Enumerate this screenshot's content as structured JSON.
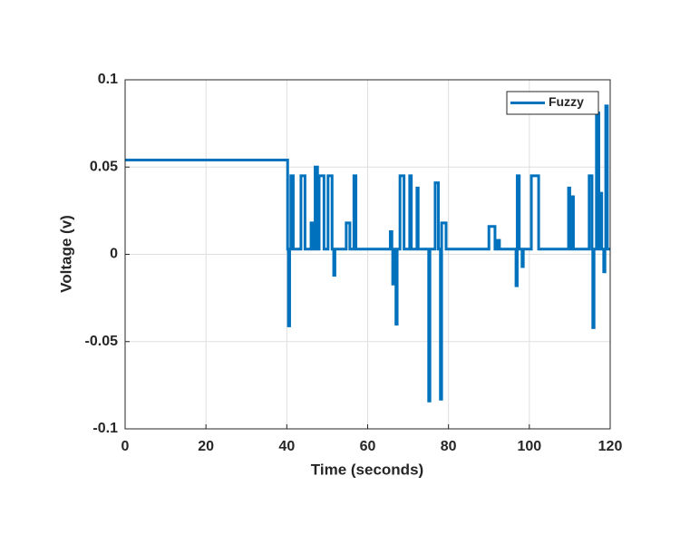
{
  "chart_data": {
    "type": "line",
    "xlabel": "Time (seconds)",
    "ylabel": "Voltage (v)",
    "xlim": [
      0,
      120
    ],
    "xticks": [
      0,
      20,
      40,
      60,
      80,
      100,
      120
    ],
    "ylim": [
      -0.1,
      0.1
    ],
    "yticks": [
      -0.1,
      -0.05,
      0,
      0.05,
      0.1
    ],
    "grid": true,
    "legend": "upper right",
    "series": [
      {
        "name": "Fuzzy",
        "color": "#0072bd",
        "x": [
          0,
          40.2,
          40.2,
          40.4,
          40.4,
          40.7,
          40.7,
          41,
          41,
          41.6,
          41.6,
          43.5,
          43.5,
          44.5,
          44.5,
          46,
          46,
          46.4,
          46.4,
          47,
          47,
          47.6,
          47.6,
          48,
          48,
          49.2,
          49.2,
          50.2,
          50.2,
          51.2,
          51.2,
          51.6,
          51.6,
          51.9,
          51.9,
          54.7,
          54.7,
          55.6,
          55.6,
          56.6,
          56.6,
          57.1,
          57.1,
          65.6,
          65.6,
          66,
          66,
          66.2,
          66.2,
          66.5,
          66.5,
          67,
          67,
          67.3,
          67.3,
          68,
          68,
          69,
          69,
          70.4,
          70.4,
          70.8,
          70.8,
          72.2,
          72.2,
          72.5,
          72.5,
          75.1,
          75.1,
          75.4,
          75.4,
          76.7,
          76.7,
          77.5,
          77.5,
          78,
          78,
          78.3,
          78.3,
          78.3,
          78.3,
          79.4,
          79.4,
          90,
          90,
          91.5,
          91.5,
          92,
          92,
          92.6,
          92.6,
          96.7,
          96.7,
          97,
          97,
          97,
          97,
          97.5,
          97.5,
          98.2,
          98.2,
          98.5,
          98.5,
          100.5,
          100.5,
          102.3,
          102.3,
          109.7,
          109.7,
          110,
          110,
          110.6,
          110.6,
          110.9,
          110.9,
          114.8,
          114.8,
          115.5,
          115.5,
          115.7,
          115.7,
          116,
          116,
          116.6,
          116.6,
          117.2,
          117.2,
          117.5,
          117.5,
          117.9,
          117.9,
          118.4,
          118.4,
          118.7,
          118.7,
          118.9,
          118.9,
          119.3,
          119.3,
          120
        ],
        "values": [
          0.054,
          0.054,
          0.003,
          0.003,
          -0.041,
          -0.041,
          0.003,
          0.003,
          0.045,
          0.045,
          0.003,
          0.003,
          0.045,
          0.045,
          0.003,
          0.003,
          0.018,
          0.018,
          0.003,
          0.003,
          0.05,
          0.05,
          0.003,
          0.003,
          0.045,
          0.045,
          0.003,
          0.003,
          0.045,
          0.045,
          0.003,
          0.003,
          -0.012,
          -0.012,
          0.003,
          0.003,
          0.018,
          0.018,
          0.003,
          0.003,
          0.045,
          0.045,
          0.003,
          0.003,
          0.013,
          0.013,
          0.003,
          0.003,
          -0.017,
          -0.017,
          0.003,
          0.003,
          -0.04,
          -0.04,
          0.003,
          0.003,
          0.045,
          0.045,
          0.003,
          0.003,
          0.045,
          0.045,
          0.003,
          0.003,
          0.038,
          0.038,
          0.003,
          0.003,
          -0.084,
          -0.084,
          0.003,
          0.003,
          0.041,
          0.041,
          0.003,
          0.003,
          -0.083,
          -0.083,
          0.003,
          0.003,
          0.018,
          0.018,
          0.003,
          0.003,
          0.016,
          0.016,
          0.003,
          0.003,
          0.008,
          0.008,
          0.003,
          0.003,
          -0.018,
          -0.018,
          0.003,
          0.003,
          0.045,
          0.045,
          0.003,
          0.003,
          -0.007,
          -0.007,
          0.003,
          0.003,
          0.045,
          0.045,
          0.003,
          0.003,
          0.038,
          0.038,
          0.003,
          0.003,
          0.033,
          0.033,
          0.003,
          0.003,
          0.045,
          0.045,
          0.003,
          0.003,
          -0.042,
          -0.042,
          0.003,
          0.003,
          0.081,
          0.081,
          0.003,
          0.003,
          0.035,
          0.035,
          0.003,
          0.003,
          -0.01,
          -0.01,
          0.003,
          0.003,
          0.085,
          0.085,
          0.003,
          0.003
        ]
      }
    ]
  }
}
